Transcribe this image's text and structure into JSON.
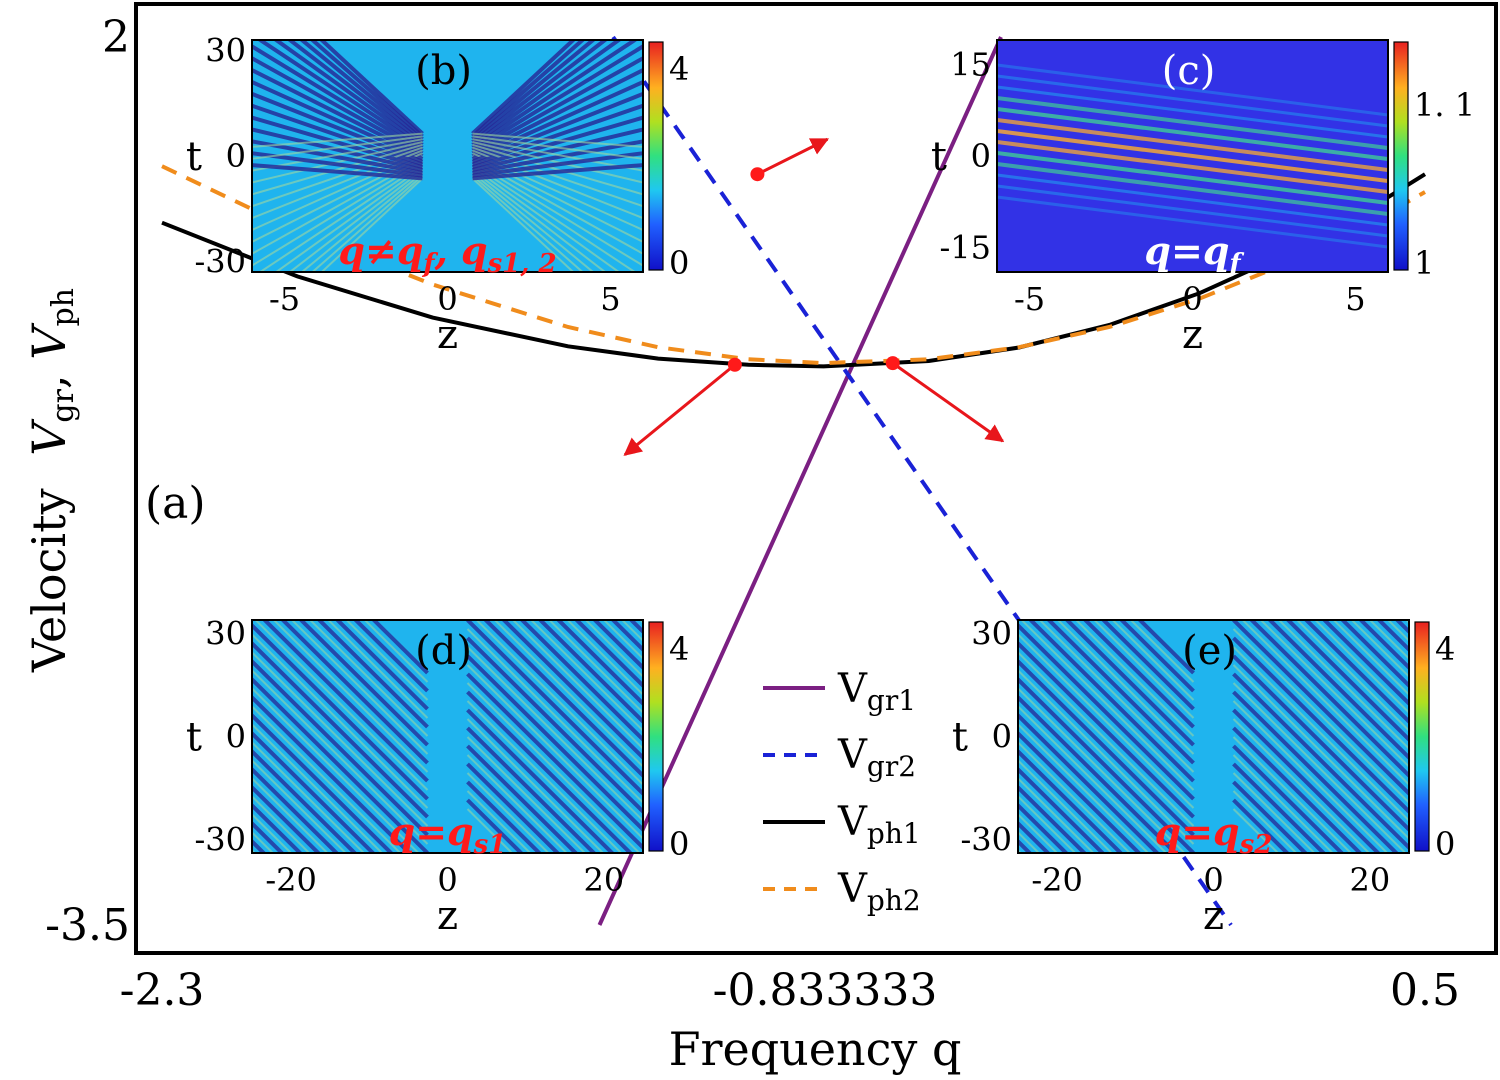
{
  "chart_data": {
    "type": "line",
    "xlabel": "Frequency q",
    "ylabel_main": "Velocity",
    "ylabel_sym1": "V",
    "ylabel_sub1": "gr",
    "ylabel_sep": ", ",
    "ylabel_sym2": "V",
    "ylabel_sub2": "ph",
    "xlim": [
      -2.3,
      0.5
    ],
    "ylim": [
      -3.5,
      2
    ],
    "x_ticks": [
      "-2.3",
      "-0.833333",
      "0.5"
    ],
    "y_ticks": [
      "2",
      "-3.5"
    ],
    "panel_label": "(a)",
    "series": [
      {
        "name": "V_gr1",
        "sym": "V",
        "sub": "gr1",
        "style": "solid",
        "color": "#7b1f82",
        "x": [
          -1.33,
          -0.44
        ],
        "y": [
          -3.5,
          2.0
        ]
      },
      {
        "name": "V_gr2",
        "sym": "V",
        "sub": "gr2",
        "style": "dashed",
        "color": "#1a22d6",
        "x": [
          -1.3,
          0.07
        ],
        "y": [
          2.0,
          -3.5
        ]
      },
      {
        "name": "V_ph1",
        "sym": "V",
        "sub": "ph1",
        "style": "solid",
        "color": "#000000",
        "x": [
          -2.3,
          -2.0,
          -1.7,
          -1.4,
          -1.2,
          -1.0,
          -0.833333,
          -0.6,
          -0.4,
          -0.2,
          0.0,
          0.2,
          0.4,
          0.5
        ],
        "y": [
          0.85,
          0.517,
          0.262,
          0.084,
          0.008,
          -0.03,
          -0.04,
          -0.007,
          0.077,
          0.216,
          0.413,
          0.666,
          0.976,
          1.15
        ]
      },
      {
        "name": "V_ph2",
        "sym": "V",
        "sub": "ph2",
        "style": "dashed",
        "color": "#f08c1c",
        "x": [
          -2.3,
          -2.0,
          -1.7,
          -1.4,
          -1.2,
          -1.0,
          -0.833333,
          -0.6,
          -0.4,
          -0.2,
          0.0,
          0.2,
          0.4,
          0.5
        ],
        "y": [
          1.2,
          0.8,
          0.467,
          0.204,
          0.079,
          0.004,
          -0.02,
          0.004,
          0.079,
          0.204,
          0.38,
          0.605,
          0.881,
          1.04
        ]
      }
    ],
    "intersections": [
      {
        "name": "q_f",
        "x": -0.98,
        "y": 1.15
      },
      {
        "name": "q_s1",
        "x": -1.03,
        "y": -0.03
      },
      {
        "name": "q_s2",
        "x": -0.68,
        "y": -0.02
      }
    ],
    "insets": [
      {
        "id": "b",
        "label": "(b)",
        "annotation_main": "q≠q",
        "annotation_sub1": "f",
        "annotation_sep": ", q",
        "annotation_sub2": "s1, 2",
        "annotation_color": "#ff1a1a",
        "xlabel": "z",
        "ylabel": "t",
        "x_ticks": [
          "-5",
          "0",
          "5"
        ],
        "y_ticks": [
          "30",
          "0",
          "-30"
        ],
        "colorbar_ticks": [
          "4",
          "0"
        ],
        "xrange": [
          -6,
          6
        ],
        "yrange": [
          -33,
          33
        ],
        "pattern": "crossing"
      },
      {
        "id": "c",
        "label": "(c)",
        "annotation_main": "q=q",
        "annotation_sub1": "f",
        "annotation_color": "#ffffff",
        "xlabel": "z",
        "ylabel": "t",
        "x_ticks": [
          "-5",
          "0",
          "5"
        ],
        "y_ticks": [
          "15",
          "0",
          "-15"
        ],
        "colorbar_ticks": [
          "1. 1",
          "1"
        ],
        "xrange": [
          -6,
          6
        ],
        "yrange": [
          -19,
          19
        ],
        "pattern": "stripes"
      },
      {
        "id": "d",
        "label": "(d)",
        "annotation_main": "q=q",
        "annotation_sub1": "s1",
        "annotation_color": "#ff1a1a",
        "xlabel": "z",
        "ylabel": "t",
        "x_ticks": [
          "-20",
          "0",
          "20"
        ],
        "y_ticks": [
          "30",
          "0",
          "-30"
        ],
        "colorbar_ticks": [
          "4",
          "0"
        ],
        "xrange": [
          -25,
          25
        ],
        "yrange": [
          -34,
          34
        ],
        "pattern": "diagonal"
      },
      {
        "id": "e",
        "label": "(e)",
        "annotation_main": "q=q",
        "annotation_sub1": "s2",
        "annotation_color": "#ff1a1a",
        "xlabel": "z",
        "ylabel": "t",
        "x_ticks": [
          "-20",
          "0",
          "20"
        ],
        "y_ticks": [
          "30",
          "0",
          "-30"
        ],
        "colorbar_ticks": [
          "4",
          "0"
        ],
        "xrange": [
          -25,
          25
        ],
        "yrange": [
          -34,
          34
        ],
        "pattern": "diagonal"
      }
    ]
  },
  "colors": {
    "arrow": "#e8161b",
    "dot": "#ff1a1a",
    "inset_bg": "#1fb4ee",
    "inset_bg_c": "#3232e6",
    "axis": "#000000"
  }
}
